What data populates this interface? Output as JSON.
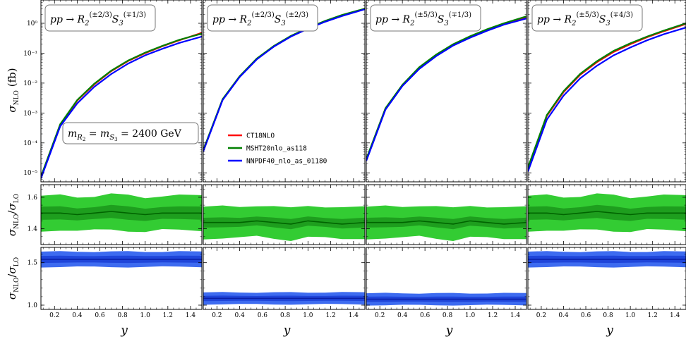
{
  "chart_data": {
    "type": "line",
    "x_axis": {
      "label": "y",
      "range": [
        0.08,
        1.5
      ],
      "ticks": [
        0.2,
        0.4,
        0.6,
        0.8,
        1.0,
        1.2,
        1.4
      ],
      "tick_labels": [
        "0.2",
        "0.4",
        "0.6",
        "0.8",
        "1.0",
        "1.2",
        "1.4"
      ]
    },
    "top_ylabel_main": "σ",
    "top_ylabel_sub": "NLO",
    "top_ylabel_unit": "(fb)",
    "top_yscale": "log",
    "top_ylim": [
      5e-06,
      6
    ],
    "top_ytick_values": [
      1e-05,
      0.0001,
      0.001,
      0.01,
      0.1,
      1
    ],
    "top_ytick_labels": [
      "10⁻⁵",
      "10⁻⁴",
      "10⁻³",
      "10⁻²",
      "10⁻¹",
      "10⁰"
    ],
    "ratio_ylabel_num": "σ",
    "ratio_ylabel_num_sub": "NLO",
    "ratio_ylabel_sep": "/",
    "ratio_ylabel_den": "σ",
    "ratio_ylabel_den_sub": "LO",
    "ratio_top_ylim": [
      1.3,
      1.68
    ],
    "ratio_top_ticks": [
      1.4,
      1.6
    ],
    "ratio_top_tick_labels": [
      "1.4",
      "1.6"
    ],
    "ratio_bot_ylim": [
      0.95,
      1.68
    ],
    "ratio_bot_ticks": [
      1.0,
      1.5
    ],
    "ratio_bot_tick_labels": [
      "1.0",
      "1.5"
    ],
    "mass_label": "m_{R₂} = m_{S₃} = 2400 GeV",
    "mass_label_parts": {
      "lhs1": "m",
      "lhs1_sub": "R",
      "lhs1_subsub": "2",
      "eq": " = ",
      "lhs2": "m",
      "lhs2_sub": "S",
      "lhs2_subsub": "3",
      "rhs": " = 2400 GeV"
    },
    "legend_position": "panel-2 lower-middle",
    "series": [
      {
        "name": "CT18NLO",
        "color": "#ff0000"
      },
      {
        "name": "MSHT20nlo_as118",
        "color": "#008000"
      },
      {
        "name": "NNPDF40_nlo_as_01180",
        "color": "#0000ff"
      }
    ],
    "colors": {
      "green_outer": "#33cc33",
      "green_inner": "#1e9e1e",
      "green_line": "#006400",
      "blue_outer": "#3d6bf0",
      "blue_inner": "#1f45d9",
      "blue_line": "#0a1fa8"
    },
    "x_samples": [
      0.08,
      0.25,
      0.4,
      0.55,
      0.7,
      0.85,
      1.0,
      1.15,
      1.3,
      1.5
    ],
    "panels": [
      {
        "process_parts": {
          "pre": "pp → R",
          "sub1": "2",
          "sup1": "(±2/3)",
          "mid": "S",
          "sub2": "3",
          "sup2": "(∓1/3)"
        },
        "cross_section": {
          "CT18NLO": [
            7e-06,
            0.0004,
            0.0026,
            0.009,
            0.025,
            0.055,
            0.1,
            0.17,
            0.27,
            0.48
          ],
          "MSHT20nlo_as118": [
            7.5e-06,
            0.00042,
            0.0027,
            0.0095,
            0.026,
            0.057,
            0.105,
            0.175,
            0.28,
            0.45
          ],
          "NNPDF40_nlo_as_01180": [
            6.5e-06,
            0.00036,
            0.0021,
            0.0075,
            0.02,
            0.045,
            0.085,
            0.14,
            0.22,
            0.36
          ]
        },
        "ratio_green": {
          "central": [
            1.5,
            1.5,
            1.49,
            1.5,
            1.51,
            1.5,
            1.49,
            1.5,
            1.5,
            1.5
          ],
          "inner_half_width": 0.04,
          "outer_half_width": 0.11
        },
        "ratio_blue": {
          "central": [
            1.54,
            1.54,
            1.54,
            1.54,
            1.54,
            1.54,
            1.54,
            1.54,
            1.54,
            1.54
          ],
          "inner_half_width": 0.04,
          "outer_half_width": 0.09
        }
      },
      {
        "process_parts": {
          "pre": "pp → R",
          "sub1": "2",
          "sup1": "(±2/3)",
          "mid": "S",
          "sub2": "3",
          "sup2": "(±2/3)"
        },
        "cross_section": {
          "CT18NLO": [
            5.5e-05,
            0.0028,
            0.0165,
            0.064,
            0.17,
            0.37,
            0.68,
            1.15,
            1.8,
            3.0
          ],
          "MSHT20nlo_as118": [
            5.8e-05,
            0.0029,
            0.017,
            0.066,
            0.175,
            0.38,
            0.7,
            1.2,
            1.9,
            3.1
          ],
          "NNPDF40_nlo_as_01180": [
            5.2e-05,
            0.0027,
            0.016,
            0.062,
            0.165,
            0.36,
            0.66,
            1.12,
            1.75,
            2.95
          ]
        },
        "ratio_green": {
          "central": [
            1.44,
            1.44,
            1.44,
            1.45,
            1.44,
            1.43,
            1.45,
            1.44,
            1.43,
            1.44
          ],
          "inner_half_width": 0.03,
          "outer_half_width": 0.1
        },
        "ratio_blue": {
          "central": [
            1.08,
            1.08,
            1.08,
            1.08,
            1.08,
            1.08,
            1.08,
            1.08,
            1.08,
            1.08
          ],
          "inner_half_width": 0.03,
          "outer_half_width": 0.07
        }
      },
      {
        "process_parts": {
          "pre": "pp → R",
          "sub1": "2",
          "sup1": "(±5/3)",
          "mid": "S",
          "sub2": "3",
          "sup2": "(∓1/3)"
        },
        "cross_section": {
          "CT18NLO": [
            2.7e-05,
            0.0014,
            0.0085,
            0.032,
            0.085,
            0.19,
            0.35,
            0.6,
            0.95,
            1.6
          ],
          "MSHT20nlo_as118": [
            2.9e-05,
            0.00145,
            0.0088,
            0.034,
            0.09,
            0.2,
            0.37,
            0.63,
            1.0,
            1.7
          ],
          "NNPDF40_nlo_as_01180": [
            2.5e-05,
            0.0013,
            0.008,
            0.03,
            0.08,
            0.18,
            0.33,
            0.56,
            0.9,
            1.45
          ]
        },
        "ratio_green": {
          "central": [
            1.44,
            1.44,
            1.44,
            1.45,
            1.44,
            1.43,
            1.45,
            1.44,
            1.43,
            1.44
          ],
          "inner_half_width": 0.03,
          "outer_half_width": 0.1
        },
        "ratio_blue": {
          "central": [
            1.07,
            1.07,
            1.07,
            1.07,
            1.07,
            1.07,
            1.07,
            1.07,
            1.07,
            1.07
          ],
          "inner_half_width": 0.03,
          "outer_half_width": 0.07
        }
      },
      {
        "process_parts": {
          "pre": "pp → R",
          "sub1": "2",
          "sup1": "(±5/3)",
          "mid": "S",
          "sub2": "3",
          "sup2": "(∓4/3)"
        },
        "cross_section": {
          "CT18NLO": [
            1.4e-05,
            0.0008,
            0.005,
            0.019,
            0.05,
            0.11,
            0.2,
            0.34,
            0.54,
            0.95
          ],
          "MSHT20nlo_as118": [
            1.5e-05,
            0.00085,
            0.0054,
            0.0205,
            0.054,
            0.12,
            0.215,
            0.36,
            0.57,
            1.0
          ],
          "NNPDF40_nlo_as_01180": [
            1.1e-05,
            0.0006,
            0.0038,
            0.0145,
            0.038,
            0.085,
            0.155,
            0.27,
            0.43,
            0.72
          ]
        },
        "ratio_green": {
          "central": [
            1.5,
            1.5,
            1.49,
            1.5,
            1.51,
            1.5,
            1.49,
            1.5,
            1.5,
            1.5
          ],
          "inner_half_width": 0.04,
          "outer_half_width": 0.11
        },
        "ratio_blue": {
          "central": [
            1.54,
            1.54,
            1.54,
            1.54,
            1.54,
            1.54,
            1.54,
            1.54,
            1.54,
            1.54
          ],
          "inner_half_width": 0.04,
          "outer_half_width": 0.09
        }
      }
    ]
  }
}
